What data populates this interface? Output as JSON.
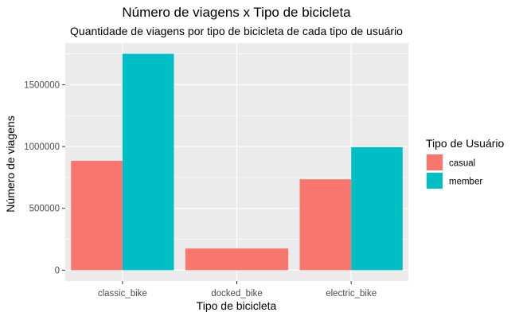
{
  "chart_data": {
    "type": "bar",
    "title": "Número de viagens x Tipo de bicicleta",
    "subtitle": "Quantidade de viagens por tipo de bicicleta de cada tipo de usuário",
    "xlabel": "Tipo de bicicleta",
    "ylabel": "Número de viagens",
    "categories": [
      "classic_bike",
      "docked_bike",
      "electric_bike"
    ],
    "series": [
      {
        "name": "casual",
        "color": "#F8766D",
        "values": [
          885000,
          175000,
          735000
        ]
      },
      {
        "name": "member",
        "color": "#00BFC4",
        "values": [
          1750000,
          null,
          995000
        ]
      }
    ],
    "yticks": [
      0,
      500000,
      1000000,
      1500000
    ],
    "ytick_labels": [
      "0",
      "500000",
      "1000000",
      "1500000"
    ],
    "ylim": [
      -87500,
      1837500
    ],
    "grid": true,
    "panel_background": "#EBEBEB",
    "grid_color": "#FFFFFF",
    "legend": {
      "title": "Tipo de Usuário",
      "position": "right"
    }
  }
}
